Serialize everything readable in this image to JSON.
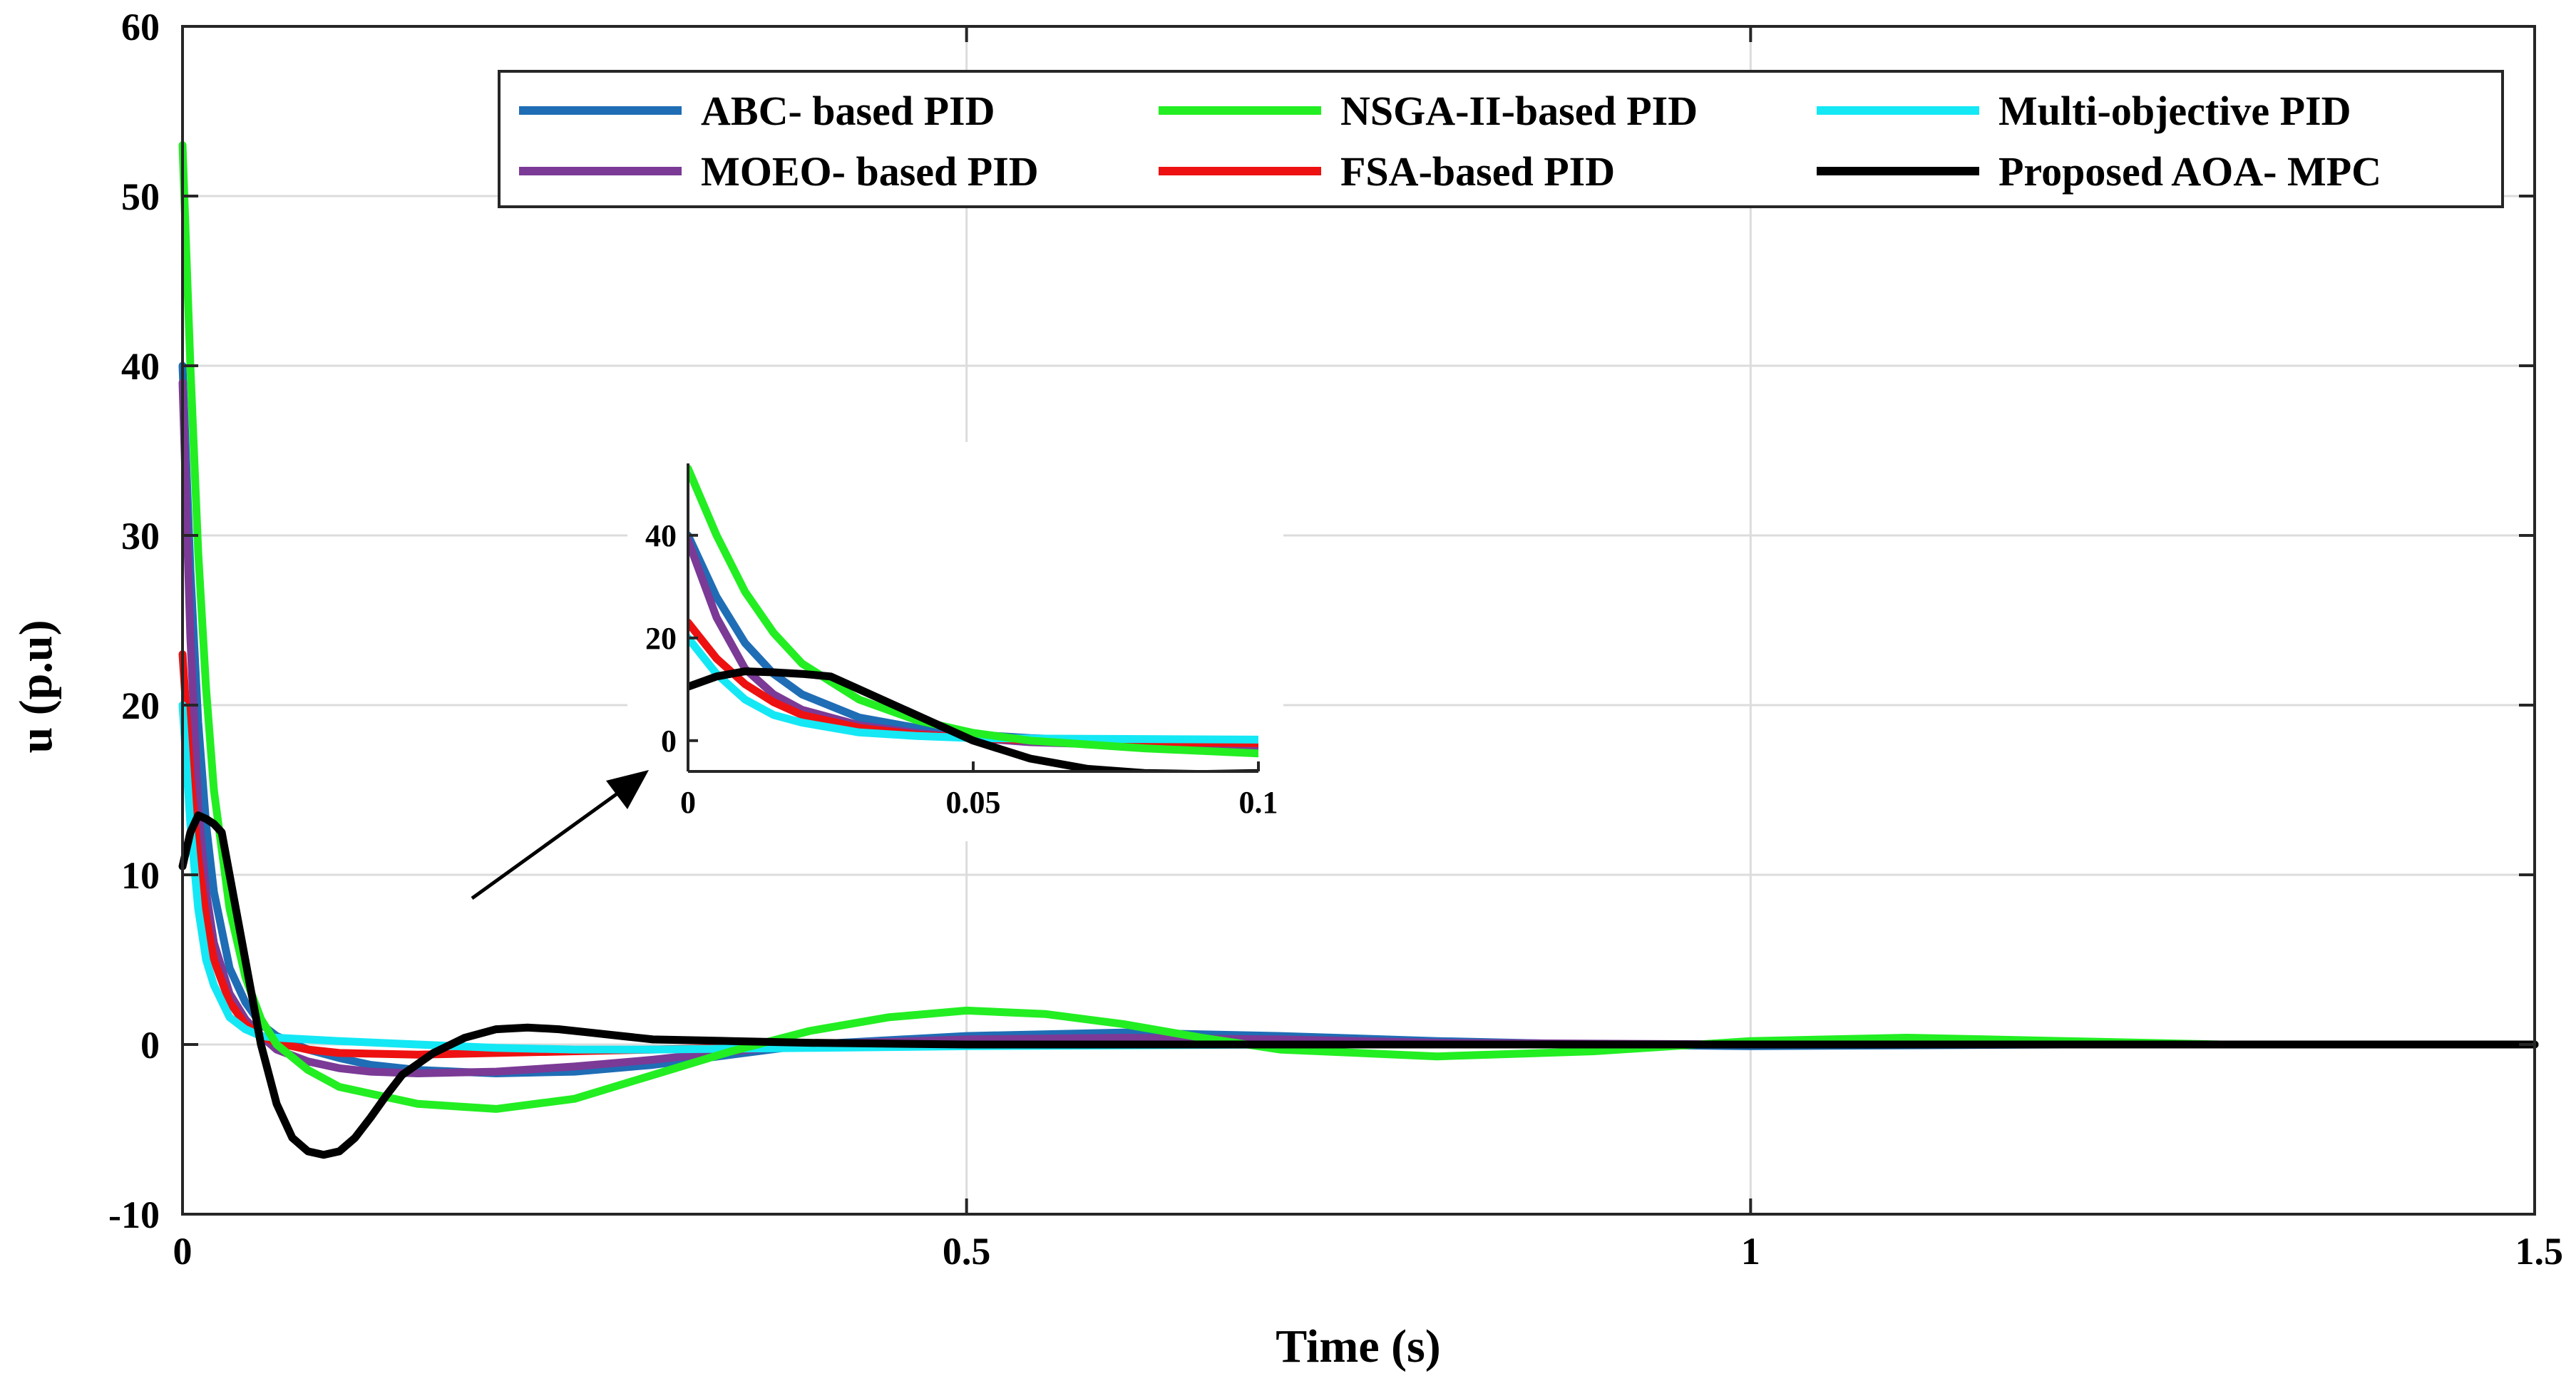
{
  "chart_data": {
    "type": "line",
    "title": "",
    "xlabel": "Time (s)",
    "ylabel": "u (p.u)",
    "xlim": [
      0,
      1.5
    ],
    "ylim": [
      -10,
      60
    ],
    "xticks": [
      0,
      0.5,
      1,
      1.5
    ],
    "yticks": [
      -10,
      0,
      10,
      20,
      30,
      40,
      50,
      60
    ],
    "xtick_labels": [
      "0",
      "0.5",
      "1",
      "1.5"
    ],
    "ytick_labels": [
      "-10",
      "0",
      "10",
      "20",
      "30",
      "40",
      "50",
      "60"
    ],
    "grid": true,
    "legend_position": "top-right",
    "series": [
      {
        "name": "ABC- based PID",
        "color": "#1f6db5",
        "x": [
          0,
          0.005,
          0.01,
          0.015,
          0.02,
          0.03,
          0.04,
          0.05,
          0.06,
          0.08,
          0.1,
          0.12,
          0.15,
          0.2,
          0.25,
          0.3,
          0.35,
          0.4,
          0.5,
          0.6,
          0.7,
          0.8,
          0.9,
          1.0,
          1.2,
          1.5
        ],
        "y": [
          40,
          28,
          19,
          13,
          9,
          4.5,
          2.5,
          1.2,
          0.5,
          -0.3,
          -0.8,
          -1.2,
          -1.5,
          -1.7,
          -1.6,
          -1.2,
          -0.6,
          0,
          0.5,
          0.7,
          0.5,
          0.2,
          0,
          -0.1,
          0,
          0
        ]
      },
      {
        "name": "NSGA-II-based PID",
        "color": "#22ee22",
        "x": [
          0,
          0.005,
          0.01,
          0.015,
          0.02,
          0.03,
          0.04,
          0.05,
          0.06,
          0.08,
          0.1,
          0.15,
          0.2,
          0.25,
          0.3,
          0.35,
          0.4,
          0.45,
          0.5,
          0.55,
          0.6,
          0.65,
          0.7,
          0.8,
          0.9,
          1.0,
          1.1,
          1.2,
          1.3,
          1.5
        ],
        "y": [
          53,
          40,
          29,
          21,
          15,
          8,
          4,
          1.5,
          0,
          -1.5,
          -2.5,
          -3.5,
          -3.8,
          -3.2,
          -1.8,
          -0.4,
          0.8,
          1.6,
          2,
          1.8,
          1.2,
          0.4,
          -0.3,
          -0.7,
          -0.4,
          0.2,
          0.4,
          0.2,
          0,
          0
        ]
      },
      {
        "name": "Multi-objective PID",
        "color": "#14e8f5",
        "x": [
          0,
          0.005,
          0.01,
          0.015,
          0.02,
          0.03,
          0.04,
          0.05,
          0.06,
          0.08,
          0.1,
          0.15,
          0.2,
          0.25,
          0.3,
          0.4,
          0.5,
          0.7,
          1.0,
          1.5
        ],
        "y": [
          20,
          13,
          8,
          5,
          3.5,
          1.6,
          0.9,
          0.5,
          0.4,
          0.3,
          0.2,
          0,
          -0.2,
          -0.3,
          -0.3,
          -0.2,
          -0.1,
          0,
          0,
          0
        ]
      },
      {
        "name": "MOEO- based PID",
        "color": "#7b3a96",
        "x": [
          0,
          0.005,
          0.01,
          0.015,
          0.02,
          0.03,
          0.04,
          0.05,
          0.06,
          0.08,
          0.1,
          0.12,
          0.15,
          0.2,
          0.25,
          0.3,
          0.35,
          0.4,
          0.5,
          0.6,
          0.7,
          0.8,
          1.0,
          1.5
        ],
        "y": [
          39,
          24,
          14,
          9,
          6,
          3,
          1.5,
          0.5,
          -0.3,
          -1,
          -1.4,
          -1.6,
          -1.7,
          -1.6,
          -1.3,
          -0.9,
          -0.4,
          0,
          0.3,
          0.4,
          0.3,
          0.1,
          0,
          0
        ]
      },
      {
        "name": "FSA-based PID",
        "color": "#ee1111",
        "x": [
          0,
          0.005,
          0.01,
          0.015,
          0.02,
          0.03,
          0.04,
          0.05,
          0.06,
          0.08,
          0.1,
          0.15,
          0.2,
          0.3,
          0.4,
          0.5,
          0.7,
          1.0,
          1.5
        ],
        "y": [
          23,
          16,
          11,
          7.5,
          5,
          2.5,
          1.2,
          0.5,
          0.1,
          -0.3,
          -0.5,
          -0.6,
          -0.5,
          -0.3,
          -0.1,
          0,
          0,
          0,
          0
        ]
      },
      {
        "name": "Proposed AOA- MPC",
        "color": "#000000",
        "x": [
          0,
          0.005,
          0.01,
          0.015,
          0.02,
          0.025,
          0.03,
          0.04,
          0.05,
          0.06,
          0.07,
          0.08,
          0.09,
          0.1,
          0.11,
          0.12,
          0.13,
          0.14,
          0.16,
          0.18,
          0.2,
          0.22,
          0.24,
          0.26,
          0.28,
          0.3,
          0.35,
          0.4,
          0.5,
          0.7,
          1.0,
          1.5
        ],
        "y": [
          10.5,
          12.5,
          13.5,
          13.3,
          13,
          12.5,
          10,
          5,
          0,
          -3.5,
          -5.5,
          -6.3,
          -6.5,
          -6.3,
          -5.5,
          -4.3,
          -3,
          -1.8,
          -0.5,
          0.4,
          0.9,
          1,
          0.9,
          0.7,
          0.5,
          0.3,
          0.2,
          0.1,
          0,
          0,
          0,
          0
        ]
      }
    ],
    "inset": {
      "xlim": [
        0,
        0.1
      ],
      "ylim": [
        -6,
        54
      ],
      "xticks": [
        0,
        0.05,
        0.1
      ],
      "yticks": [
        0,
        20,
        40
      ],
      "xtick_labels": [
        "0",
        "0.05",
        "0.1"
      ],
      "ytick_labels": [
        "0",
        "20",
        "40"
      ]
    }
  }
}
